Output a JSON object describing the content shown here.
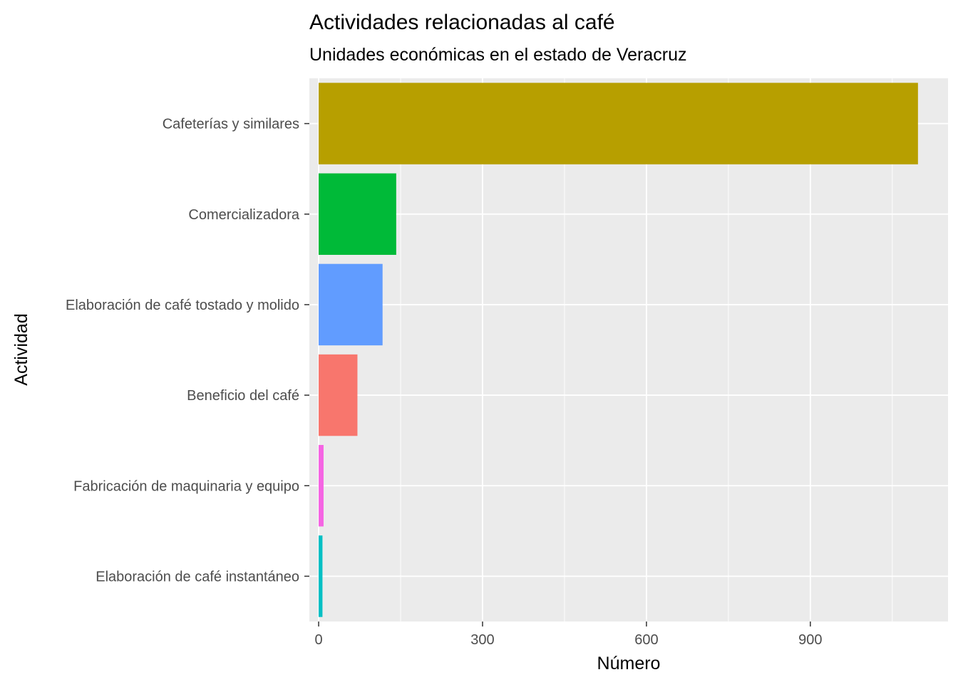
{
  "chart_data": {
    "type": "bar",
    "orientation": "horizontal",
    "title": "Actividades relacionadas al café",
    "subtitle": "Unidades económicas en el estado de Veracruz",
    "xlabel": "Número",
    "ylabel": "Actividad",
    "xlim": [
      -17,
      1152
    ],
    "xticks": [
      0,
      300,
      600,
      900
    ],
    "grid": true,
    "legend": "none",
    "categories": [
      "Cafeterías y similares",
      "Comercializadora",
      "Elaboración de café tostado y molido",
      "Beneficio del café",
      "Fabricación de maquinaria y equipo",
      "Elaboración de café instantáneo"
    ],
    "values": [
      1097,
      142,
      117,
      71,
      9,
      7
    ],
    "colors": [
      "#B79F00",
      "#00BA38",
      "#619CFF",
      "#F8766D",
      "#F564E3",
      "#00BFC4"
    ],
    "panel_background": "#EBEBEB",
    "grid_color": "#FFFFFF"
  }
}
